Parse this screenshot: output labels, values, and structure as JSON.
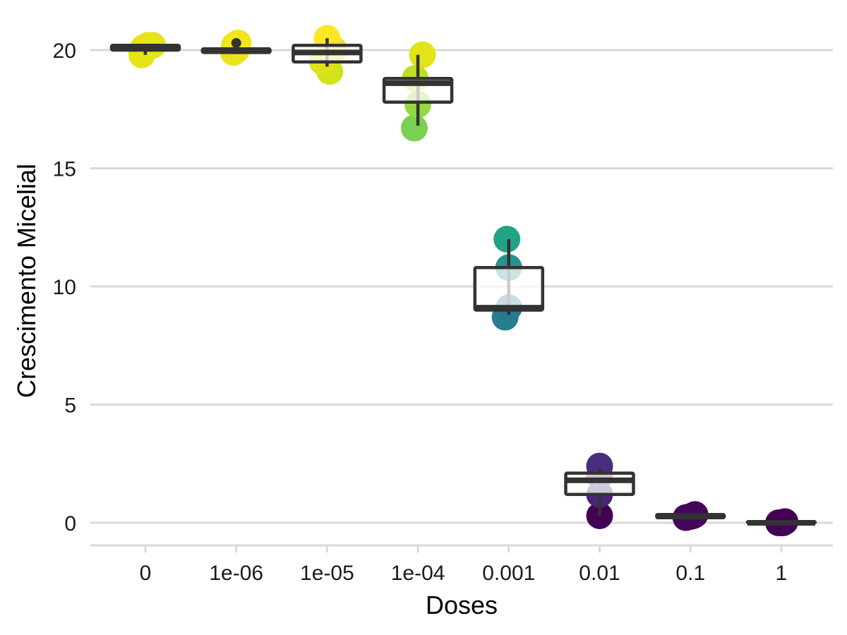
{
  "chart_data": {
    "type": "box",
    "xlabel": "Doses",
    "ylabel": "Crescimento Micelial",
    "categories": [
      "0",
      "1e-06",
      "1e-05",
      "1e-04",
      "0.001",
      "0.01",
      "0.1",
      "1"
    ],
    "ylim": [
      -1,
      21
    ],
    "yticks": [
      0,
      5,
      10,
      15,
      20
    ],
    "grid": "horizontal major",
    "legend": "none",
    "point_color_scale": "viridis",
    "boxes": [
      {
        "category": "0",
        "lower_whisker": 19.8,
        "q1": 20.0,
        "median": 20.1,
        "q3": 20.2,
        "upper_whisker": 20.2
      },
      {
        "category": "1e-06",
        "lower_whisker": 19.9,
        "q1": 19.9,
        "median": 20.0,
        "q3": 20.05,
        "upper_whisker": 20.05,
        "outliers": [
          20.3
        ]
      },
      {
        "category": "1e-05",
        "lower_whisker": 19.3,
        "q1": 19.5,
        "median": 19.9,
        "q3": 20.2,
        "upper_whisker": 20.5
      },
      {
        "category": "1e-04",
        "lower_whisker": 16.8,
        "q1": 17.8,
        "median": 18.6,
        "q3": 18.8,
        "upper_whisker": 19.8
      },
      {
        "category": "0.001",
        "lower_whisker": 8.8,
        "q1": 9.0,
        "median": 9.1,
        "q3": 10.8,
        "upper_whisker": 12.0
      },
      {
        "category": "0.01",
        "lower_whisker": 0.3,
        "q1": 1.2,
        "median": 1.8,
        "q3": 2.1,
        "upper_whisker": 2.3
      },
      {
        "category": "0.1",
        "lower_whisker": 0.2,
        "q1": 0.22,
        "median": 0.27,
        "q3": 0.35,
        "upper_whisker": 0.35
      },
      {
        "category": "1",
        "lower_whisker": 0.0,
        "q1": 0.0,
        "median": 0.0,
        "q3": 0.05,
        "upper_whisker": 0.05
      }
    ],
    "points": [
      {
        "category": "0",
        "values": [
          19.8,
          20.1,
          20.2,
          20.2
        ],
        "jitter": [
          -0.04,
          -0.02,
          0.03,
          0.08
        ],
        "colors": [
          "#e6e419",
          "#e6e419",
          "#e6e419",
          "#e6e419"
        ]
      },
      {
        "category": "1e-06",
        "values": [
          19.9,
          20.0,
          20.2,
          20.3
        ],
        "jitter": [
          -0.03,
          0.0,
          -0.02,
          0.02
        ],
        "colors": [
          "#e8e419",
          "#e8e419",
          "#e8e419",
          "#f1e51d"
        ]
      },
      {
        "category": "1e-05",
        "values": [
          19.1,
          19.5,
          20.0,
          20.5
        ],
        "jitter": [
          0.03,
          -0.05,
          0.08,
          0.0
        ],
        "colors": [
          "#d2e21b",
          "#dce319",
          "#e8e419",
          "#fde725"
        ]
      },
      {
        "category": "1e-04",
        "values": [
          16.7,
          17.7,
          18.8,
          19.8
        ],
        "jitter": [
          -0.04,
          0.0,
          -0.03,
          0.05
        ],
        "colors": [
          "#7ad151",
          "#95d840",
          "#bddf26",
          "#e2e418"
        ]
      },
      {
        "category": "0.001",
        "values": [
          8.7,
          9.1,
          10.8,
          12.0
        ],
        "jitter": [
          -0.04,
          0.0,
          0.0,
          -0.02
        ],
        "colors": [
          "#287d8e",
          "#2a788e",
          "#25948b",
          "#20a486"
        ]
      },
      {
        "category": "0.01",
        "values": [
          0.3,
          1.2,
          2.0,
          2.4
        ],
        "jitter": [
          0.0,
          0.0,
          0.0,
          0.0
        ],
        "colors": [
          "#440154",
          "#482576",
          "#46337e",
          "#472d7b"
        ]
      },
      {
        "category": "0.1",
        "values": [
          0.22,
          0.27,
          0.3,
          0.35
        ],
        "jitter": [
          -0.05,
          0.0,
          0.03,
          0.05
        ],
        "colors": [
          "#450559",
          "#450559",
          "#450559",
          "#450559"
        ]
      },
      {
        "category": "1",
        "values": [
          0.0,
          0.0,
          0.0,
          0.05
        ],
        "jitter": [
          -0.03,
          0.0,
          0.02,
          0.04
        ],
        "colors": [
          "#440154",
          "#440154",
          "#440154",
          "#440154"
        ]
      }
    ],
    "colors": {
      "box_outline": "#333333",
      "gridline": "#d9d9d9",
      "axis_line": "#d9d9d9"
    }
  }
}
